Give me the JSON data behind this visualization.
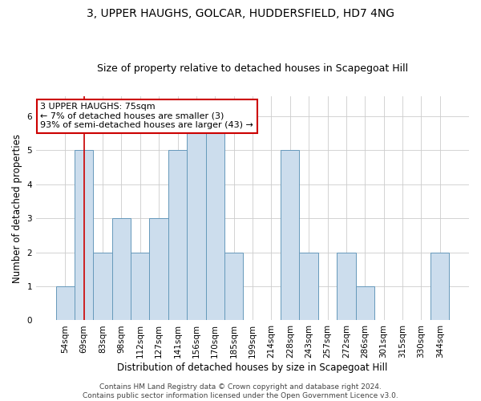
{
  "title": "3, UPPER HAUGHS, GOLCAR, HUDDERSFIELD, HD7 4NG",
  "subtitle": "Size of property relative to detached houses in Scapegoat Hill",
  "xlabel": "Distribution of detached houses by size in Scapegoat Hill",
  "ylabel": "Number of detached properties",
  "categories": [
    "54sqm",
    "69sqm",
    "83sqm",
    "98sqm",
    "112sqm",
    "127sqm",
    "141sqm",
    "156sqm",
    "170sqm",
    "185sqm",
    "199sqm",
    "214sqm",
    "228sqm",
    "243sqm",
    "257sqm",
    "272sqm",
    "286sqm",
    "301sqm",
    "315sqm",
    "330sqm",
    "344sqm"
  ],
  "values": [
    1,
    5,
    2,
    3,
    2,
    3,
    5,
    6,
    6,
    2,
    0,
    0,
    5,
    2,
    0,
    2,
    1,
    0,
    0,
    0,
    2
  ],
  "bar_color": "#ccdded",
  "bar_edge_color": "#6699bb",
  "highlight_bar_index": 1,
  "highlight_line_color": "#cc0000",
  "annotation_text": "3 UPPER HAUGHS: 75sqm\n← 7% of detached houses are smaller (3)\n93% of semi-detached houses are larger (43) →",
  "annotation_box_color": "#ffffff",
  "annotation_box_edge_color": "#cc0000",
  "ylim": [
    0,
    6.6
  ],
  "yticks": [
    0,
    1,
    2,
    3,
    4,
    5,
    6
  ],
  "footer_text": "Contains HM Land Registry data © Crown copyright and database right 2024.\nContains public sector information licensed under the Open Government Licence v3.0.",
  "title_fontsize": 10,
  "subtitle_fontsize": 9,
  "xlabel_fontsize": 8.5,
  "ylabel_fontsize": 8.5,
  "tick_fontsize": 7.5,
  "annotation_fontsize": 8,
  "footer_fontsize": 6.5,
  "background_color": "#ffffff",
  "grid_color": "#cccccc"
}
